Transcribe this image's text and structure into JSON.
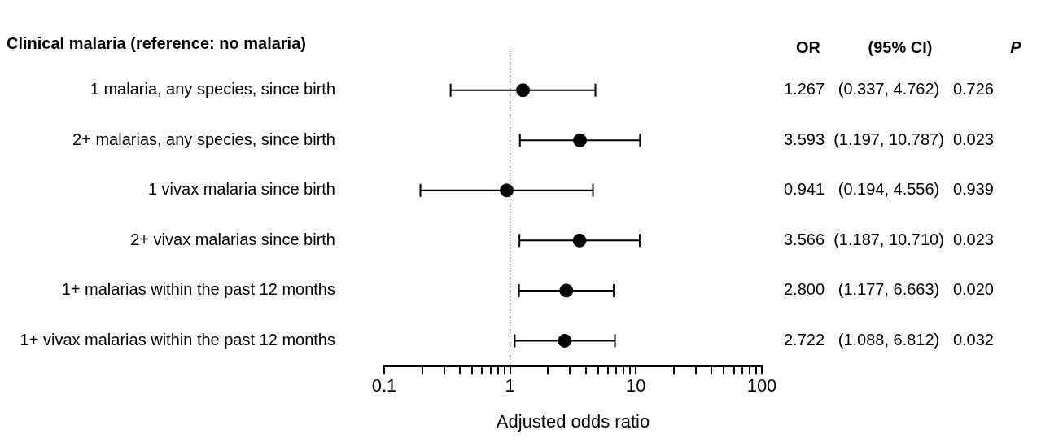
{
  "chart_data": {
    "type": "scatter",
    "orientation": "horizontal",
    "title": "Clinical malaria (reference: no malaria)",
    "xlabel": "Adjusted odds ratio",
    "categories": [
      "1 malaria, any species, since birth",
      "2+ malarias, any species, since birth",
      "1 vivax malaria since birth",
      "2+ vivax malarias since birth",
      "1+ malarias within the past 12 months",
      "1+ vivax malarias within the past 12 months"
    ],
    "values": [
      1.267,
      3.593,
      0.941,
      3.566,
      2.8,
      2.722
    ],
    "errors": [
      [
        0.337,
        4.762
      ],
      [
        1.197,
        10.787
      ],
      [
        0.194,
        4.556
      ],
      [
        1.187,
        10.71
      ],
      [
        1.177,
        6.663
      ],
      [
        1.088,
        6.812
      ]
    ],
    "value_labels": [
      "1.267   (0.337, 4.762)   0.726",
      "3.593  (1.197, 10.787)  0.023",
      "0.941   (0.194, 4.556)   0.939",
      "3.566  (1.187, 10.710)  0.023",
      "2.800   (1.177, 6.663)   0.020",
      "2.722   (1.088, 6.812)   0.032"
    ],
    "annotations": [
      "OR",
      "(95% CI)",
      "P"
    ],
    "color": "#000000",
    "marker": "circle",
    "log": "x",
    "grid": false,
    "legend": false,
    "xlim": [
      0.1,
      100
    ],
    "xticks": [
      0.1,
      {
        "value": 0.2,
        "label": null
      },
      {
        "value": 0.3,
        "label": null
      },
      {
        "value": 0.4,
        "label": null
      },
      {
        "value": 0.5,
        "label": null
      },
      {
        "value": 0.6,
        "label": null
      },
      {
        "value": 0.7,
        "label": null
      },
      {
        "value": 0.8,
        "label": null
      },
      {
        "value": 0.9,
        "label": null
      },
      1,
      {
        "value": 2,
        "label": null
      },
      {
        "value": 3,
        "label": null
      },
      {
        "value": 4,
        "label": null
      },
      {
        "value": 5,
        "label": null
      },
      {
        "value": 6,
        "label": null
      },
      {
        "value": 7,
        "label": null
      },
      {
        "value": 8,
        "label": null
      },
      {
        "value": 9,
        "label": null
      },
      10,
      {
        "value": 20,
        "label": null
      },
      {
        "value": 30,
        "label": null
      },
      {
        "value": 40,
        "label": null
      },
      {
        "value": 50,
        "label": null
      },
      {
        "value": 60,
        "label": null
      },
      {
        "value": 70,
        "label": null
      },
      {
        "value": 80,
        "label": null
      },
      {
        "value": 90,
        "label": null
      },
      100
    ],
    "ref_lines": [
      {
        "axis": "x",
        "value": 1,
        "line_style": "dotted",
        "color": "#000000"
      }
    ]
  }
}
